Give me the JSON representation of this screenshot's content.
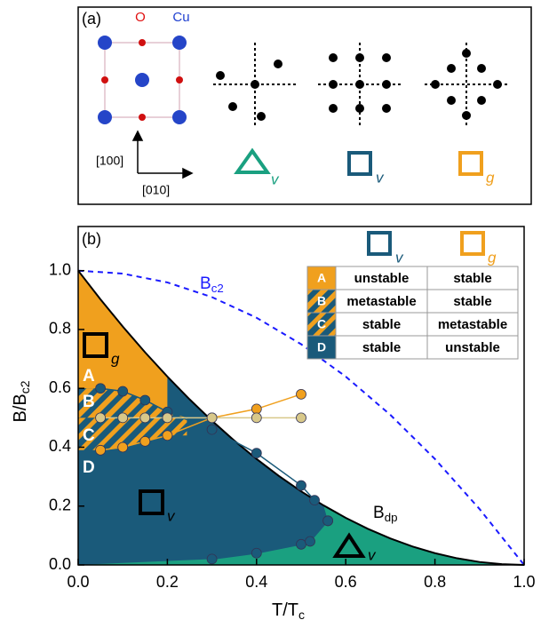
{
  "panel_a": {
    "label": "(a)",
    "atom_o": "O",
    "atom_cu": "Cu",
    "dir_vertical": "[100]",
    "dir_horizontal": "[010]",
    "icon_subs": [
      "v",
      "v",
      "g"
    ]
  },
  "chart_data": {
    "type": "line",
    "panel_label": "(b)",
    "xlabel": {
      "main": "T/T",
      "sub": "c"
    },
    "ylabel": {
      "main": "B/B",
      "sub": "c2"
    },
    "xlim": [
      0,
      1
    ],
    "ylim": [
      0,
      1.15
    ],
    "xticks": [
      {
        "value": 0,
        "label": "0.0"
      },
      {
        "value": 0.2,
        "label": "0.2"
      },
      {
        "value": 0.4,
        "label": "0.4"
      },
      {
        "value": 0.6,
        "label": "0.6"
      },
      {
        "value": 0.8,
        "label": "0.8"
      },
      {
        "value": 1,
        "label": "1.0"
      }
    ],
    "yticks": [
      {
        "value": 0,
        "label": "0.0"
      },
      {
        "value": 0.2,
        "label": "0.2"
      },
      {
        "value": 0.4,
        "label": "0.4"
      },
      {
        "value": 0.6,
        "label": "0.6"
      },
      {
        "value": 0.8,
        "label": "0.8"
      },
      {
        "value": 1,
        "label": "1.0"
      }
    ],
    "series": [
      {
        "color": "#1a1aff",
        "dash": true,
        "markers": false,
        "x": [
          0,
          0.1,
          0.2,
          0.3,
          0.4,
          0.5,
          0.6,
          0.7,
          0.8,
          0.9,
          1
        ],
        "values": [
          1,
          0.99,
          0.96,
          0.91,
          0.84,
          0.75,
          0.64,
          0.51,
          0.36,
          0.19,
          0
        ]
      },
      {
        "color": "#000000",
        "dash": false,
        "markers": false,
        "x": [
          0,
          0.05,
          0.1,
          0.15,
          0.2,
          0.25,
          0.3,
          0.35,
          0.4,
          0.45,
          0.5,
          0.55,
          0.6,
          0.65,
          0.7,
          0.75,
          0.8,
          0.85,
          0.9,
          0.95,
          1
        ],
        "values": [
          1,
          0.9025,
          0.81,
          0.7225,
          0.64,
          0.5625,
          0.49,
          0.4225,
          0.36,
          0.3025,
          0.25,
          0.2025,
          0.16,
          0.1225,
          0.09,
          0.0625,
          0.04,
          0.0225,
          0.01,
          0.0025,
          0
        ]
      },
      {
        "color": "#1a5a7a",
        "dash": false,
        "markers": true,
        "x": [
          0.05,
          0.1,
          0.15,
          0.2,
          0.3,
          0.4,
          0.5,
          0.53,
          0.56
        ],
        "values": [
          0.6,
          0.59,
          0.56,
          0.52,
          0.46,
          0.38,
          0.27,
          0.22,
          0.15
        ]
      },
      {
        "color": "#1a5a7a",
        "dash": false,
        "markers": true,
        "x": [
          0.3,
          0.4,
          0.5,
          0.52,
          0.56
        ],
        "values": [
          0.02,
          0.04,
          0.07,
          0.08,
          0.15
        ]
      },
      {
        "color": "#f0a01e",
        "dash": false,
        "markers": true,
        "x": [
          0.05,
          0.1,
          0.15,
          0.2,
          0.3,
          0.4,
          0.5
        ],
        "values": [
          0.39,
          0.4,
          0.42,
          0.44,
          0.5,
          0.53,
          0.58
        ]
      },
      {
        "color": "#d8c88a",
        "dash": false,
        "markers": true,
        "x": [
          0.05,
          0.1,
          0.15,
          0.2,
          0.3,
          0.4,
          0.5
        ],
        "values": [
          0.5,
          0.5,
          0.5,
          0.5,
          0.5,
          0.5,
          0.5
        ]
      }
    ],
    "region_labels": [
      "A",
      "B",
      "C",
      "D"
    ],
    "bc2_label": {
      "main": "B",
      "sub": "c2"
    },
    "bdp_label": {
      "main": "B",
      "sub": "dp"
    },
    "marker_subs": [
      "g",
      "v",
      "v"
    ],
    "table": {
      "header_subs": [
        "v",
        "g"
      ],
      "rows": [
        [
          "A",
          "unstable",
          "stable"
        ],
        [
          "B",
          "metastable",
          "stable"
        ],
        [
          "C",
          "stable",
          "metastable"
        ],
        [
          "D",
          "stable",
          "unstable"
        ]
      ]
    }
  }
}
